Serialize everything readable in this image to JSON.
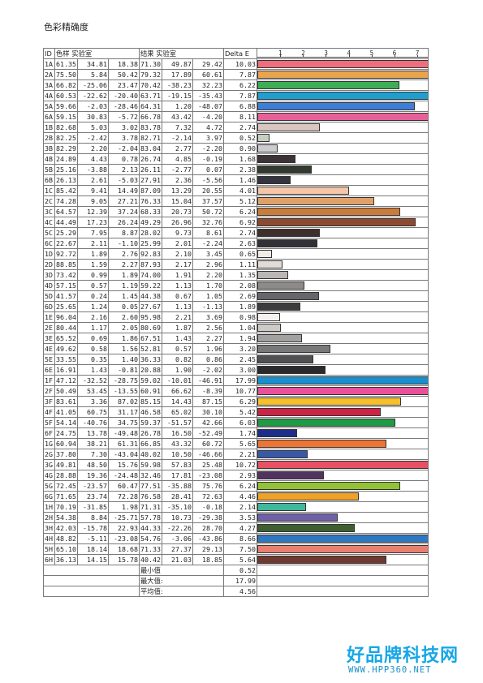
{
  "page": {
    "title": "色彩精确度"
  },
  "headers": {
    "id": "ID",
    "sample": "色样 实验室",
    "result": "结果 实验室",
    "delta": "Delta E"
  },
  "axis_ticks": [
    "1",
    "2",
    "3",
    "4",
    "5",
    "6",
    "7"
  ],
  "summary": [
    {
      "label": "最小值",
      "value": "0.52"
    },
    {
      "label": "最大值:",
      "value": "17.99"
    },
    {
      "label": "平均值:",
      "value": "4.56"
    }
  ],
  "watermark": {
    "brand": "好品牌科技网",
    "url": "WWW.HPP360.NET"
  },
  "chart_data": {
    "type": "bar",
    "title": "色彩精确度",
    "xlabel": "Delta E",
    "xlim": [
      0,
      7.5
    ],
    "rows": [
      {
        "id": "1A",
        "sample": [
          61.35,
          34.81,
          18.38
        ],
        "result": [
          71.3,
          49.87,
          29.42
        ],
        "delta": 10.03,
        "color": "#ee6e7e"
      },
      {
        "id": "2A",
        "sample": [
          75.5,
          5.84,
          50.42
        ],
        "result": [
          79.32,
          17.89,
          60.61
        ],
        "delta": 7.87,
        "color": "#eba44e"
      },
      {
        "id": "3A",
        "sample": [
          66.82,
          -25.06,
          23.47
        ],
        "result": [
          70.42,
          -38.23,
          32.23
        ],
        "delta": 6.22,
        "color": "#3fad55"
      },
      {
        "id": "4A",
        "sample": [
          60.53,
          -22.62,
          -20.4
        ],
        "result": [
          63.71,
          -19.15,
          -35.43
        ],
        "delta": 7.87,
        "color": "#1f9fcf"
      },
      {
        "id": "5A",
        "sample": [
          59.66,
          -2.03,
          -28.46
        ],
        "result": [
          64.31,
          1.2,
          -48.07
        ],
        "delta": 6.88,
        "color": "#3d7ed6"
      },
      {
        "id": "6A",
        "sample": [
          59.15,
          30.83,
          -5.72
        ],
        "result": [
          66.78,
          43.42,
          -4.2
        ],
        "delta": 8.11,
        "color": "#e8609a"
      },
      {
        "id": "1B",
        "sample": [
          82.68,
          5.03,
          3.02
        ],
        "result": [
          83.78,
          7.32,
          4.72
        ],
        "delta": 2.74,
        "color": "#d9c6c0"
      },
      {
        "id": "2B",
        "sample": [
          82.25,
          -2.42,
          3.78
        ],
        "result": [
          82.71,
          -2.14,
          3.97
        ],
        "delta": 0.52,
        "color": "#c8cdc4"
      },
      {
        "id": "3B",
        "sample": [
          82.29,
          2.2,
          -2.04
        ],
        "result": [
          83.04,
          2.77,
          -2.2
        ],
        "delta": 0.9,
        "color": "#cfcad0"
      },
      {
        "id": "4B",
        "sample": [
          24.89,
          4.43,
          0.78
        ],
        "result": [
          26.74,
          4.85,
          -0.19
        ],
        "delta": 1.68,
        "color": "#3c3337"
      },
      {
        "id": "5B",
        "sample": [
          25.16,
          -3.88,
          2.13
        ],
        "result": [
          26.11,
          -2.77,
          0.07
        ],
        "delta": 2.38,
        "color": "#32392f"
      },
      {
        "id": "6B",
        "sample": [
          26.13,
          2.61,
          -5.03
        ],
        "result": [
          27.91,
          2.36,
          -5.56
        ],
        "delta": 1.46,
        "color": "#343440"
      },
      {
        "id": "1C",
        "sample": [
          85.42,
          9.41,
          14.49
        ],
        "result": [
          87.09,
          13.29,
          20.55
        ],
        "delta": 4.01,
        "color": "#f5c6a8"
      },
      {
        "id": "2C",
        "sample": [
          74.28,
          9.05,
          27.21
        ],
        "result": [
          76.33,
          15.04,
          37.57
        ],
        "delta": 5.12,
        "color": "#e0a06a"
      },
      {
        "id": "3C",
        "sample": [
          64.57,
          12.39,
          37.24
        ],
        "result": [
          68.33,
          20.73,
          50.72
        ],
        "delta": 6.24,
        "color": "#c97c3c"
      },
      {
        "id": "4C",
        "sample": [
          44.49,
          17.23,
          26.24
        ],
        "result": [
          49.29,
          26.96,
          32.76
        ],
        "delta": 6.92,
        "color": "#8c4a30"
      },
      {
        "id": "5C",
        "sample": [
          25.29,
          7.95,
          8.87
        ],
        "result": [
          28.02,
          9.73,
          8.61
        ],
        "delta": 2.74,
        "color": "#3e2f2c"
      },
      {
        "id": "6C",
        "sample": [
          22.67,
          2.11,
          -1.1
        ],
        "result": [
          25.99,
          2.01,
          -2.24
        ],
        "delta": 2.63,
        "color": "#303036"
      },
      {
        "id": "1D",
        "sample": [
          92.72,
          1.89,
          2.76
        ],
        "result": [
          92.83,
          2.1,
          3.45
        ],
        "delta": 0.65,
        "color": "#f0ece6"
      },
      {
        "id": "2D",
        "sample": [
          88.85,
          1.59,
          2.27
        ],
        "result": [
          87.93,
          2.17,
          2.96
        ],
        "delta": 1.11,
        "color": "#e1dcd7"
      },
      {
        "id": "3D",
        "sample": [
          73.42,
          0.99,
          1.89
        ],
        "result": [
          74.0,
          1.91,
          2.2
        ],
        "delta": 1.35,
        "color": "#b9b6b3"
      },
      {
        "id": "4D",
        "sample": [
          57.15,
          0.57,
          1.19
        ],
        "result": [
          59.22,
          1.13,
          1.7
        ],
        "delta": 2.08,
        "color": "#8d8b8a"
      },
      {
        "id": "5D",
        "sample": [
          41.57,
          0.24,
          1.45
        ],
        "result": [
          44.38,
          0.67,
          1.05
        ],
        "delta": 2.69,
        "color": "#67666a"
      },
      {
        "id": "6D",
        "sample": [
          25.65,
          1.24,
          0.05
        ],
        "result": [
          27.67,
          1.13,
          -1.13
        ],
        "delta": 1.89,
        "color": "#3c3c3e"
      },
      {
        "id": "1E",
        "sample": [
          96.04,
          2.16,
          2.6
        ],
        "result": [
          95.98,
          2.21,
          3.69
        ],
        "delta": 0.98,
        "color": "#f5f1ee"
      },
      {
        "id": "2E",
        "sample": [
          80.44,
          1.17,
          2.05
        ],
        "result": [
          80.69,
          1.87,
          2.56
        ],
        "delta": 1.04,
        "color": "#cdcac8"
      },
      {
        "id": "3E",
        "sample": [
          65.52,
          0.69,
          1.86
        ],
        "result": [
          67.51,
          1.43,
          2.27
        ],
        "delta": 1.94,
        "color": "#a3a1a0"
      },
      {
        "id": "4E",
        "sample": [
          49.62,
          0.58,
          1.56
        ],
        "result": [
          52.81,
          0.57,
          1.96
        ],
        "delta": 3.2,
        "color": "#7a797a"
      },
      {
        "id": "5E",
        "sample": [
          33.55,
          0.35,
          1.4
        ],
        "result": [
          36.33,
          0.82,
          0.86
        ],
        "delta": 2.45,
        "color": "#505052"
      },
      {
        "id": "6E",
        "sample": [
          16.91,
          1.43,
          -0.81
        ],
        "result": [
          20.88,
          1.9,
          -2.02
        ],
        "delta": 3.0,
        "color": "#2a2a2c"
      },
      {
        "id": "1F",
        "sample": [
          47.12,
          -32.52,
          -28.75
        ],
        "result": [
          59.02,
          -10.01,
          -46.91
        ],
        "delta": 17.99,
        "color": "#1a8fd0"
      },
      {
        "id": "2F",
        "sample": [
          50.49,
          53.45,
          -13.55
        ],
        "result": [
          60.91,
          66.62,
          -8.39
        ],
        "delta": 10.77,
        "color": "#e8509a"
      },
      {
        "id": "3F",
        "sample": [
          83.61,
          3.36,
          87.02
        ],
        "result": [
          85.15,
          14.43,
          87.15
        ],
        "delta": 6.29,
        "color": "#f5c02a"
      },
      {
        "id": "4F",
        "sample": [
          41.05,
          60.75,
          31.17
        ],
        "result": [
          46.58,
          65.02,
          30.1
        ],
        "delta": 5.42,
        "color": "#cf2345"
      },
      {
        "id": "5F",
        "sample": [
          54.14,
          -40.76,
          34.75
        ],
        "result": [
          59.37,
          -51.57,
          42.66
        ],
        "delta": 6.03,
        "color": "#1f9a45"
      },
      {
        "id": "6F",
        "sample": [
          24.75,
          13.78,
          -49.48
        ],
        "result": [
          26.78,
          16.5,
          -52.49
        ],
        "delta": 1.74,
        "color": "#1d2e8a"
      },
      {
        "id": "1G",
        "sample": [
          60.94,
          38.21,
          61.31
        ],
        "result": [
          66.85,
          43.32,
          60.72
        ],
        "delta": 5.65,
        "color": "#ee7434"
      },
      {
        "id": "2G",
        "sample": [
          37.8,
          7.3,
          -43.04
        ],
        "result": [
          40.02,
          10.5,
          -46.66
        ],
        "delta": 2.21,
        "color": "#3a58a8"
      },
      {
        "id": "3G",
        "sample": [
          49.81,
          48.5,
          15.76
        ],
        "result": [
          59.98,
          57.83,
          25.48
        ],
        "delta": 10.72,
        "color": "#e85064"
      },
      {
        "id": "4G",
        "sample": [
          28.88,
          19.36,
          -24.48
        ],
        "result": [
          32.46,
          17.81,
          -23.08
        ],
        "delta": 2.93,
        "color": "#52325e"
      },
      {
        "id": "5G",
        "sample": [
          72.45,
          -23.57,
          60.47
        ],
        "result": [
          77.51,
          -35.88,
          75.76
        ],
        "delta": 6.24,
        "color": "#92c236"
      },
      {
        "id": "6G",
        "sample": [
          71.65,
          23.74,
          72.28
        ],
        "result": [
          76.58,
          28.41,
          72.63
        ],
        "delta": 4.46,
        "color": "#f0a228"
      },
      {
        "id": "1H",
        "sample": [
          70.19,
          -31.85,
          1.98
        ],
        "result": [
          71.31,
          -35.1,
          -0.18
        ],
        "delta": 2.14,
        "color": "#3fb89c"
      },
      {
        "id": "2H",
        "sample": [
          54.38,
          8.84,
          -25.71
        ],
        "result": [
          57.78,
          10.73,
          -29.38
        ],
        "delta": 3.53,
        "color": "#7060a8"
      },
      {
        "id": "3H",
        "sample": [
          42.03,
          -15.78,
          22.93
        ],
        "result": [
          44.33,
          -22.26,
          28.7
        ],
        "delta": 4.27,
        "color": "#3e6030"
      },
      {
        "id": "4H",
        "sample": [
          48.82,
          -5.11,
          -23.08
        ],
        "result": [
          54.76,
          -3.06,
          -43.86
        ],
        "delta": 8.66,
        "color": "#2e78c2"
      },
      {
        "id": "5H",
        "sample": [
          65.1,
          18.14,
          18.68
        ],
        "result": [
          71.33,
          27.37,
          29.13
        ],
        "delta": 7.5,
        "color": "#e88070"
      },
      {
        "id": "6H",
        "sample": [
          36.13,
          14.15,
          15.78
        ],
        "result": [
          40.42,
          21.03,
          18.85
        ],
        "delta": 5.64,
        "color": "#6e3a30"
      }
    ]
  }
}
